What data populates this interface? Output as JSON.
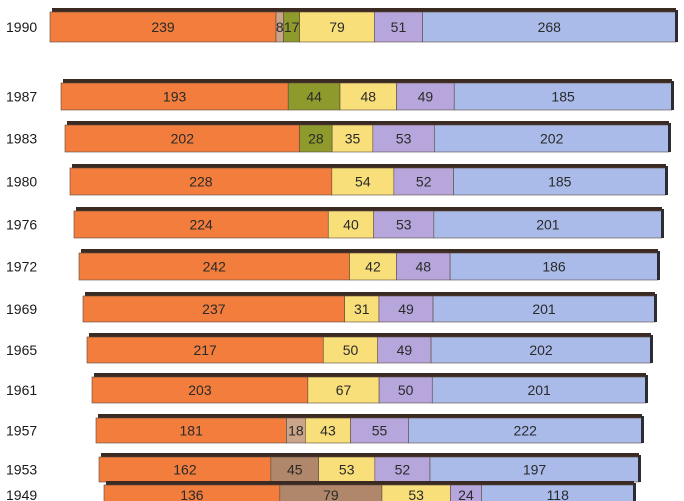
{
  "chart_data": {
    "type": "bar",
    "orientation": "horizontal",
    "stacked": true,
    "categories": [
      "1990",
      "1987",
      "1983",
      "1980",
      "1976",
      "1972",
      "1969",
      "1965",
      "1961",
      "1957",
      "1953",
      "1949"
    ],
    "rows": [
      {
        "year": "1990",
        "segments": [
          {
            "color": "orange",
            "value": 239
          },
          {
            "color": "tan",
            "value": 8
          },
          {
            "color": "olive",
            "value": 17
          },
          {
            "color": "yellow",
            "value": 79
          },
          {
            "color": "violet",
            "value": 51
          },
          {
            "color": "blue",
            "value": 268
          }
        ]
      },
      {
        "year": "1987",
        "segments": [
          {
            "color": "orange",
            "value": 193
          },
          {
            "color": "olive",
            "value": 44
          },
          {
            "color": "yellow",
            "value": 48
          },
          {
            "color": "violet",
            "value": 49
          },
          {
            "color": "blue",
            "value": 185
          }
        ]
      },
      {
        "year": "1983",
        "segments": [
          {
            "color": "orange",
            "value": 202
          },
          {
            "color": "olive",
            "value": 28
          },
          {
            "color": "yellow",
            "value": 35
          },
          {
            "color": "violet",
            "value": 53
          },
          {
            "color": "blue",
            "value": 202
          }
        ]
      },
      {
        "year": "1980",
        "segments": [
          {
            "color": "orange",
            "value": 228
          },
          {
            "color": "yellow",
            "value": 54
          },
          {
            "color": "violet",
            "value": 52
          },
          {
            "color": "blue",
            "value": 185
          }
        ]
      },
      {
        "year": "1976",
        "segments": [
          {
            "color": "orange",
            "value": 224
          },
          {
            "color": "yellow",
            "value": 40
          },
          {
            "color": "violet",
            "value": 53
          },
          {
            "color": "blue",
            "value": 201
          }
        ]
      },
      {
        "year": "1972",
        "segments": [
          {
            "color": "orange",
            "value": 242
          },
          {
            "color": "yellow",
            "value": 42
          },
          {
            "color": "violet",
            "value": 48
          },
          {
            "color": "blue",
            "value": 186
          }
        ]
      },
      {
        "year": "1969",
        "segments": [
          {
            "color": "orange",
            "value": 237
          },
          {
            "color": "yellow",
            "value": 31
          },
          {
            "color": "violet",
            "value": 49
          },
          {
            "color": "blue",
            "value": 201
          }
        ]
      },
      {
        "year": "1965",
        "segments": [
          {
            "color": "orange",
            "value": 217
          },
          {
            "color": "yellow",
            "value": 50
          },
          {
            "color": "violet",
            "value": 49
          },
          {
            "color": "blue",
            "value": 202
          }
        ]
      },
      {
        "year": "1961",
        "segments": [
          {
            "color": "orange",
            "value": 203
          },
          {
            "color": "yellow",
            "value": 67
          },
          {
            "color": "violet",
            "value": 50
          },
          {
            "color": "blue",
            "value": 201
          }
        ]
      },
      {
        "year": "1957",
        "segments": [
          {
            "color": "orange",
            "value": 181
          },
          {
            "color": "tan",
            "value": 18
          },
          {
            "color": "yellow",
            "value": 43
          },
          {
            "color": "violet",
            "value": 55
          },
          {
            "color": "blue",
            "value": 222
          }
        ]
      },
      {
        "year": "1953",
        "segments": [
          {
            "color": "orange",
            "value": 162
          },
          {
            "color": "brown",
            "value": 45
          },
          {
            "color": "yellow",
            "value": 53
          },
          {
            "color": "violet",
            "value": 52
          },
          {
            "color": "blue",
            "value": 197
          }
        ]
      },
      {
        "year": "1949",
        "segments": [
          {
            "color": "orange",
            "value": 136
          },
          {
            "color": "brown",
            "value": 79
          },
          {
            "color": "yellow",
            "value": 53
          },
          {
            "color": "violet",
            "value": 24
          },
          {
            "color": "blue",
            "value": 118
          }
        ]
      }
    ],
    "colors": {
      "orange": "#f27d3c",
      "tan": "#caa58a",
      "olive": "#8f9a2c",
      "yellow": "#f8df7a",
      "violet": "#b7a6dc",
      "blue": "#aabbea",
      "brown": "#b0876a"
    },
    "title": "",
    "xlabel": "",
    "ylabel": "",
    "grid": false,
    "legend": "none"
  }
}
